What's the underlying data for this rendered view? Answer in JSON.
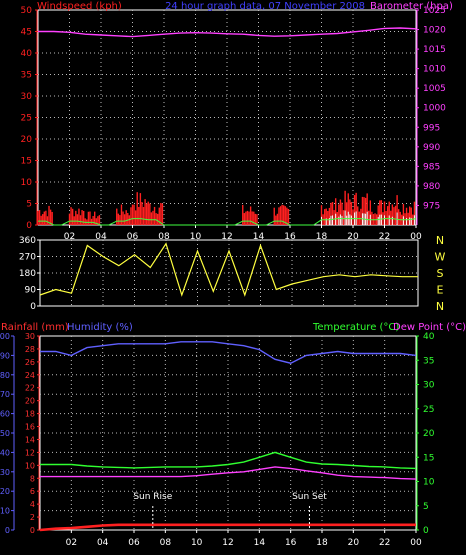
{
  "header": {
    "left_label": "Windspeed (kph)",
    "center_label": "24 hour graph data, 07 November 2008",
    "right_label": "Barometer (hpa)"
  },
  "labels": {
    "rainfall": "Rainfall (mm)",
    "humidity": "Humidity (%)",
    "temperature": "Temperature (°C)",
    "dewpoint": "Dew Point (°C)",
    "sunrise": "Sun Rise",
    "sunset": "Sun Set"
  },
  "colors": {
    "wind": "#ff2020",
    "gust": "#ffffff",
    "avg": "#40ff40",
    "baro": "#ff40ff",
    "dir": "#ffff40",
    "humidity": "#6060ff",
    "temp": "#30ff30",
    "dew": "#ff40ff",
    "rain": "#ff2020",
    "rainAxis": "#ff3030",
    "grid": "#bbbbbb",
    "axis": "#ffffff",
    "compass": "#ffff40",
    "title": "#4040ff"
  },
  "x_ticks": [
    "02",
    "04",
    "06",
    "08",
    "10",
    "12",
    "14",
    "16",
    "18",
    "20",
    "22",
    "00"
  ],
  "chart_data": [
    {
      "type": "line",
      "name": "wind_baro",
      "title": "24 hour graph data, 07 November 2008",
      "x": [
        0,
        1,
        2,
        3,
        4,
        5,
        6,
        7,
        8,
        9,
        10,
        11,
        12,
        13,
        14,
        15,
        16,
        17,
        18,
        19,
        20,
        21,
        22,
        23,
        24
      ],
      "yleft_label": "Windspeed (kph)",
      "yleft_range": [
        0,
        50
      ],
      "yleft_ticks": [
        0,
        5,
        10,
        15,
        20,
        25,
        30,
        35,
        40,
        45,
        50
      ],
      "yright_label": "Barometer (hpa)",
      "yright_range": [
        970,
        1025
      ],
      "yright_ticks": [
        975,
        980,
        985,
        990,
        995,
        1000,
        1005,
        1010,
        1015,
        1020,
        1025
      ],
      "series": [
        {
          "values": [
            1019.5,
            1019.5,
            1019.3,
            1018.8,
            1018.6,
            1018.4,
            1018.2,
            1018.5,
            1018.8,
            1019.1,
            1019.2,
            1019.1,
            1018.9,
            1018.8,
            1018.5,
            1018.3,
            1018.4,
            1018.6,
            1018.8,
            1019.0,
            1019.4,
            1019.8,
            1020.3,
            1020.4,
            1020.2
          ]
        },
        {
          "values": [
            3,
            0,
            3,
            2,
            0,
            3,
            5,
            4,
            0,
            0,
            0,
            0,
            0,
            3,
            0,
            3,
            0,
            0,
            4,
            5,
            5,
            4,
            5,
            4,
            5
          ]
        }
      ]
    },
    {
      "type": "line",
      "name": "wind_direction",
      "x": [
        0,
        1,
        2,
        3,
        4,
        5,
        6,
        7,
        8,
        9,
        10,
        11,
        12,
        13,
        14,
        15,
        16,
        17,
        18,
        19,
        20,
        21,
        22,
        23,
        24
      ],
      "y_range": [
        0,
        360
      ],
      "y_ticks": [
        0,
        90,
        180,
        270,
        360
      ],
      "compass_labels": [
        "N",
        "W",
        "S",
        "E",
        "N"
      ],
      "series": [
        {
          "values": [
            60,
            90,
            70,
            330,
            270,
            220,
            280,
            210,
            340,
            60,
            300,
            80,
            300,
            60,
            330,
            90,
            120,
            140,
            160,
            170,
            160,
            170,
            165,
            160,
            160
          ]
        }
      ]
    },
    {
      "type": "line",
      "name": "rain_humidity_temperature",
      "x": [
        0,
        1,
        2,
        3,
        4,
        5,
        6,
        7,
        8,
        9,
        10,
        11,
        12,
        13,
        14,
        15,
        16,
        17,
        18,
        19,
        20,
        21,
        22,
        23,
        24
      ],
      "humidity_range": [
        0,
        100
      ],
      "humidity_ticks": [
        0,
        10,
        20,
        30,
        40,
        50,
        60,
        70,
        80,
        90,
        100
      ],
      "rain_range": [
        0,
        30
      ],
      "rain_ticks": [
        0,
        2,
        4,
        6,
        8,
        10,
        12,
        14,
        16,
        18,
        20,
        22,
        24,
        26,
        28,
        30
      ],
      "temp_range": [
        0,
        40
      ],
      "temp_ticks": [
        0,
        5,
        10,
        15,
        20,
        25,
        30,
        35,
        40
      ],
      "series": [
        {
          "name": "Humidity (%)",
          "values": [
            92,
            92,
            90,
            94,
            95,
            96,
            96,
            96,
            96,
            97,
            97,
            97,
            96,
            95,
            93,
            88,
            86,
            90,
            91,
            92,
            91,
            91,
            91,
            91,
            90
          ]
        },
        {
          "name": "Temperature (°C)",
          "values": [
            13.5,
            13.5,
            13.5,
            13.2,
            13.0,
            12.9,
            12.8,
            12.9,
            13.0,
            13.0,
            13.0,
            13.2,
            13.5,
            14.0,
            15.0,
            16.0,
            15.0,
            14.0,
            13.6,
            13.5,
            13.3,
            13.1,
            13.0,
            12.8,
            12.7
          ]
        },
        {
          "name": "Dew Point (°C)",
          "values": [
            11.0,
            11.0,
            11.0,
            11.0,
            11.0,
            11.0,
            11.0,
            11.0,
            11.0,
            11.0,
            11.2,
            11.5,
            11.8,
            12.0,
            12.5,
            13.0,
            12.7,
            12.2,
            11.8,
            11.3,
            11.0,
            10.9,
            10.8,
            10.6,
            10.5
          ]
        },
        {
          "name": "Rainfall (mm)",
          "values": [
            0.0,
            0.2,
            0.3,
            0.5,
            0.7,
            0.8,
            0.8,
            0.8,
            0.8,
            0.8,
            0.8,
            0.8,
            0.8,
            0.8,
            0.8,
            0.8,
            0.8,
            0.8,
            0.8,
            0.8,
            0.8,
            0.8,
            0.8,
            0.8,
            0.8
          ]
        }
      ],
      "sunrise_hour": 7.2,
      "sunset_hour": 17.2
    }
  ]
}
